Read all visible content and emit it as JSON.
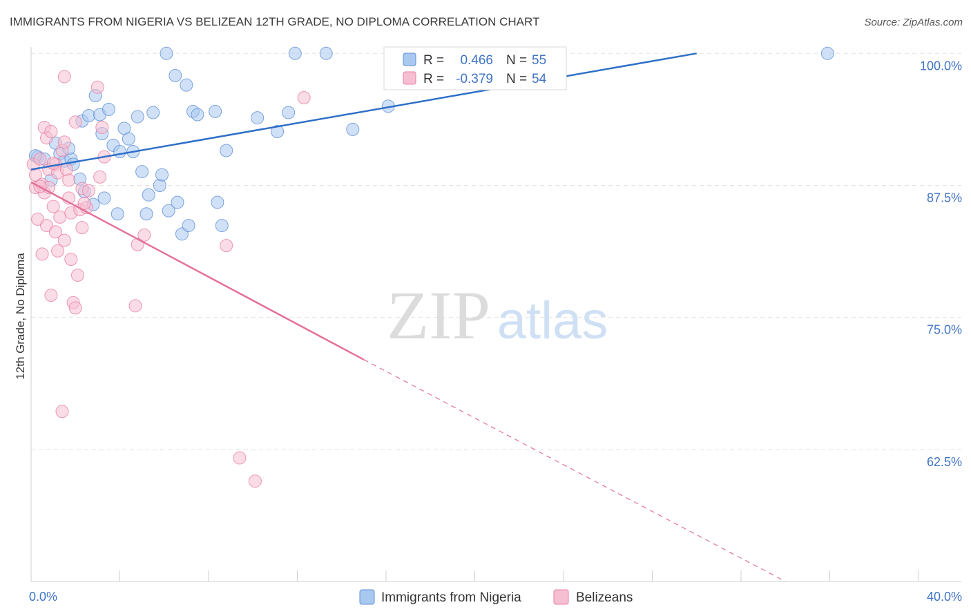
{
  "header": {
    "title": "IMMIGRANTS FROM NIGERIA VS BELIZEAN 12TH GRADE, NO DIPLOMA CORRELATION CHART",
    "source": "Source: ZipAtlas.com"
  },
  "watermark": {
    "zip": "ZIP",
    "atlas": "atlas"
  },
  "colors": {
    "blue_fill": "#a9c8f0",
    "blue_stroke": "#5e8fd6",
    "blue_line": "#2f6fc8",
    "pink_fill": "#f6bfd1",
    "pink_stroke": "#e87fa3",
    "pink_line": "#e4709b",
    "axis_text_blue": "#3f73c6",
    "grid": "#e3e3e3"
  },
  "chart_data": {
    "type": "scatter",
    "title": "IMMIGRANTS FROM NIGERIA VS BELIZEAN 12TH GRADE, NO DIPLOMA CORRELATION CHART",
    "xlabel": "",
    "ylabel": "12th Grade, No Diploma",
    "xlim": [
      0,
      40
    ],
    "ylim": [
      50,
      101
    ],
    "x_tick_labels": [
      "0.0%",
      "40.0%"
    ],
    "y_ticks": [
      62.5,
      75.0,
      87.5,
      100.0
    ],
    "y_tick_labels": [
      "62.5%",
      "75.0%",
      "87.5%",
      "100.0%"
    ],
    "grid": true,
    "legend_position": "bottom-center",
    "stats_legend": [
      {
        "r_label": "R =",
        "r_value": "0.466",
        "n_label": "N =",
        "n_value": "55"
      },
      {
        "r_label": "R =",
        "r_value": "-0.379",
        "n_label": "N =",
        "n_value": "54"
      }
    ],
    "series": [
      {
        "name": "Immigrants from Nigeria",
        "color": "#a9c8f0",
        "trend": {
          "x": [
            0.0,
            30.0
          ],
          "y": [
            89.0,
            100.0
          ],
          "dashed_extension": false
        },
        "points": [
          [
            0.3,
            90.2
          ],
          [
            0.6,
            90.0
          ],
          [
            0.9,
            88.0
          ],
          [
            1.1,
            91.5
          ],
          [
            1.3,
            90.5
          ],
          [
            1.5,
            89.8
          ],
          [
            1.8,
            90.0
          ],
          [
            1.9,
            89.5
          ],
          [
            2.2,
            88.1
          ],
          [
            2.4,
            86.9
          ],
          [
            2.3,
            93.6
          ],
          [
            2.6,
            94.1
          ],
          [
            2.8,
            85.7
          ],
          [
            3.1,
            94.2
          ],
          [
            3.2,
            92.4
          ],
          [
            3.3,
            86.3
          ],
          [
            3.5,
            94.7
          ],
          [
            3.7,
            91.3
          ],
          [
            3.9,
            84.8
          ],
          [
            4.0,
            90.7
          ],
          [
            4.2,
            92.9
          ],
          [
            4.4,
            91.9
          ],
          [
            4.6,
            90.7
          ],
          [
            4.8,
            94.0
          ],
          [
            5.0,
            88.8
          ],
          [
            5.2,
            84.8
          ],
          [
            5.3,
            86.6
          ],
          [
            5.5,
            94.4
          ],
          [
            5.8,
            87.5
          ],
          [
            5.9,
            88.5
          ],
          [
            6.1,
            100.0
          ],
          [
            6.2,
            85.1
          ],
          [
            6.5,
            97.9
          ],
          [
            6.6,
            85.9
          ],
          [
            6.8,
            82.9
          ],
          [
            7.0,
            97.0
          ],
          [
            7.1,
            83.7
          ],
          [
            7.3,
            94.5
          ],
          [
            7.5,
            94.2
          ],
          [
            8.3,
            94.5
          ],
          [
            8.4,
            85.9
          ],
          [
            8.6,
            83.7
          ],
          [
            8.8,
            90.8
          ],
          [
            10.2,
            93.9
          ],
          [
            11.1,
            92.6
          ],
          [
            11.6,
            94.4
          ],
          [
            11.9,
            100.0
          ],
          [
            13.3,
            100.0
          ],
          [
            14.5,
            92.8
          ],
          [
            16.1,
            95.0
          ],
          [
            16.6,
            100.0
          ],
          [
            35.9,
            100.0
          ],
          [
            0.2,
            90.3
          ],
          [
            1.7,
            91.0
          ],
          [
            2.9,
            96.0
          ]
        ]
      },
      {
        "name": "Belizeans",
        "color": "#f6bfd1",
        "trend": {
          "x": [
            0.0,
            15.0
          ],
          "y": [
            87.8,
            71.0
          ],
          "dashed_extension_to": [
            34.0,
            50.0
          ]
        },
        "points": [
          [
            0.1,
            89.5
          ],
          [
            0.2,
            88.5
          ],
          [
            0.2,
            87.3
          ],
          [
            0.3,
            84.3
          ],
          [
            0.4,
            90.0
          ],
          [
            0.5,
            87.6
          ],
          [
            0.5,
            81.0
          ],
          [
            0.6,
            86.8
          ],
          [
            0.6,
            93.0
          ],
          [
            0.7,
            92.0
          ],
          [
            0.7,
            83.7
          ],
          [
            0.8,
            89.0
          ],
          [
            0.8,
            87.3
          ],
          [
            0.9,
            92.6
          ],
          [
            0.9,
            77.1
          ],
          [
            1.0,
            85.5
          ],
          [
            1.1,
            89.5
          ],
          [
            1.1,
            83.1
          ],
          [
            1.2,
            88.7
          ],
          [
            1.2,
            81.3
          ],
          [
            1.3,
            84.5
          ],
          [
            1.4,
            90.8
          ],
          [
            1.4,
            66.1
          ],
          [
            1.5,
            82.3
          ],
          [
            1.5,
            91.6
          ],
          [
            1.5,
            97.8
          ],
          [
            1.6,
            89.0
          ],
          [
            1.7,
            86.3
          ],
          [
            1.7,
            88.0
          ],
          [
            1.8,
            84.9
          ],
          [
            1.8,
            80.5
          ],
          [
            1.9,
            76.4
          ],
          [
            2.0,
            93.5
          ],
          [
            2.0,
            75.9
          ],
          [
            2.1,
            79.0
          ],
          [
            2.2,
            85.2
          ],
          [
            2.3,
            87.2
          ],
          [
            2.3,
            83.5
          ],
          [
            2.5,
            85.4
          ],
          [
            2.6,
            87.0
          ],
          [
            3.0,
            96.8
          ],
          [
            3.1,
            88.3
          ],
          [
            3.2,
            93.0
          ],
          [
            3.3,
            90.2
          ],
          [
            4.7,
            76.1
          ],
          [
            4.8,
            81.9
          ],
          [
            5.1,
            82.8
          ],
          [
            8.8,
            81.8
          ],
          [
            9.4,
            61.7
          ],
          [
            10.1,
            59.5
          ],
          [
            12.3,
            95.8
          ],
          [
            1.0,
            89.6
          ],
          [
            0.4,
            87.4
          ],
          [
            2.4,
            85.8
          ]
        ]
      }
    ]
  }
}
